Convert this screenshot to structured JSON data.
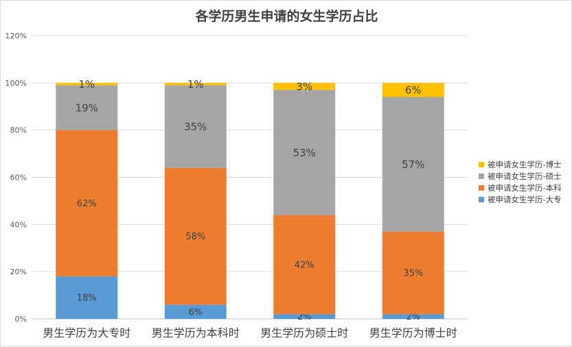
{
  "chart_data": {
    "type": "bar",
    "stacked": true,
    "title": "各学历男生申请的女生学历占比",
    "categories": [
      "男生学历为大专时",
      "男生学历为本科时",
      "男生学历为硕士时",
      "男生学历为博士时"
    ],
    "series": [
      {
        "name": "被申请女生学历-大专",
        "color": "#5B9BD5",
        "values": [
          18,
          6,
          2,
          2
        ],
        "labels": [
          "18%",
          "6%",
          "2%",
          "2%"
        ]
      },
      {
        "name": "被申请女生学历-本科",
        "color": "#ED7D31",
        "values": [
          62,
          58,
          42,
          35
        ],
        "labels": [
          "62%",
          "58%",
          "42%",
          "35%"
        ]
      },
      {
        "name": "被申请女生学历-硕士",
        "color": "#A5A5A5",
        "values": [
          19,
          35,
          53,
          57
        ],
        "labels": [
          "19%",
          "35%",
          "53%",
          "57%"
        ]
      },
      {
        "name": "被申请女生学历-博士",
        "color": "#FFC000",
        "values": [
          1,
          1,
          3,
          6
        ],
        "labels": [
          "1%",
          "1%",
          "3%",
          "6%"
        ]
      }
    ],
    "yticks": [
      "0%",
      "20%",
      "40%",
      "60%",
      "80%",
      "100%",
      "120%"
    ],
    "ylim": [
      0,
      120
    ],
    "grid": true,
    "legend": "right"
  }
}
